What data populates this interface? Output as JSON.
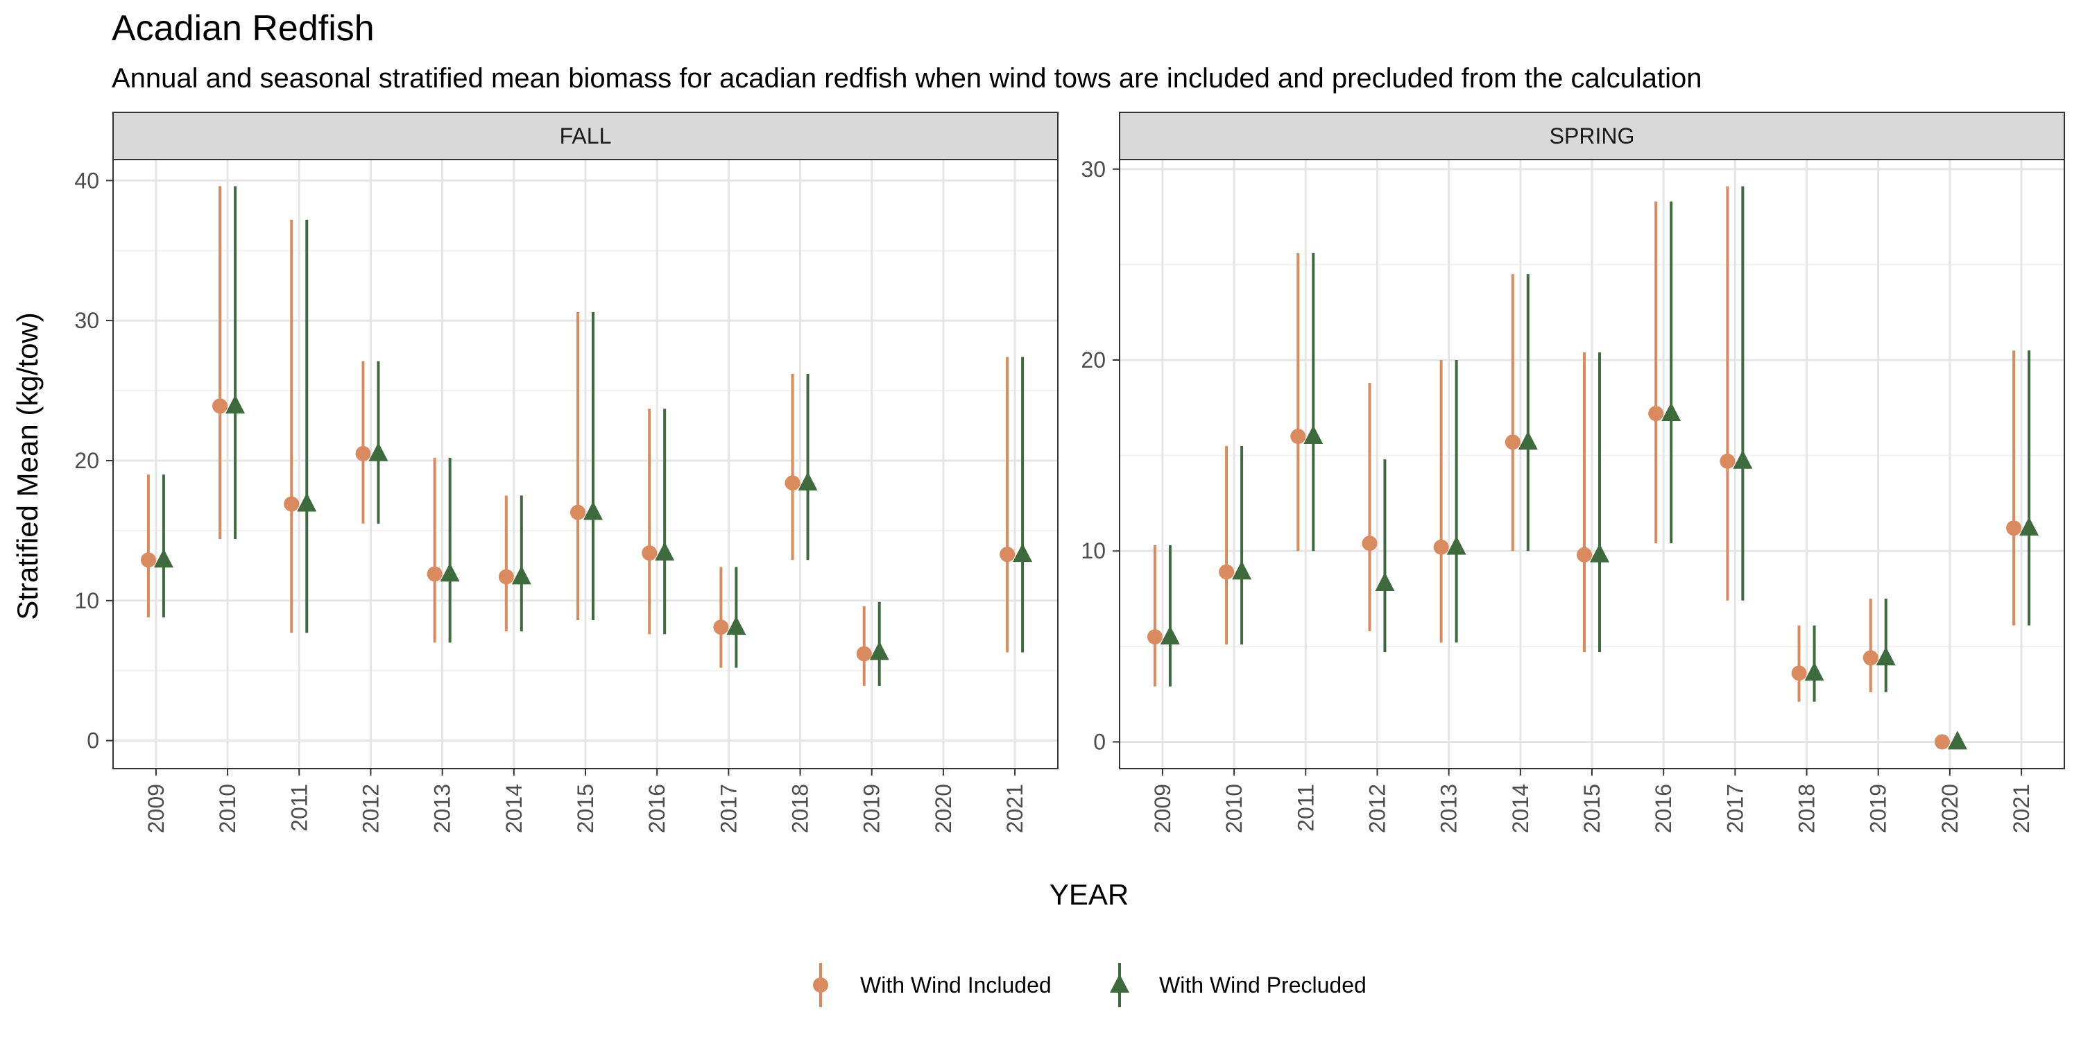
{
  "title": "Acadian Redfish",
  "subtitle": "Annual and seasonal stratified mean biomass for acadian redfish when wind tows are included and precluded from the calculation",
  "chart_data": {
    "type": "errorbar",
    "xlabel": "YEAR",
    "ylabel": "Stratified Mean (kg/tow)",
    "categories": [
      "2009",
      "2010",
      "2011",
      "2012",
      "2013",
      "2014",
      "2015",
      "2016",
      "2017",
      "2018",
      "2019",
      "2020",
      "2021"
    ],
    "legend": {
      "position": "bottom",
      "entries": [
        {
          "name": "With Wind Included",
          "color": "#D98B5F",
          "marker": "circle"
        },
        {
          "name": "With Wind Precluded",
          "color": "#3E6B3E",
          "marker": "triangle"
        }
      ]
    },
    "panels": [
      {
        "label": "FALL",
        "ylim": [
          -2,
          41.5
        ],
        "yticks": [
          0,
          10,
          20,
          30,
          40
        ],
        "series": [
          {
            "name": "With Wind Included",
            "points": [
              {
                "x": "2009",
                "y": 12.9,
                "lo": 8.8,
                "hi": 19.0
              },
              {
                "x": "2010",
                "y": 23.9,
                "lo": 14.4,
                "hi": 39.6
              },
              {
                "x": "2011",
                "y": 16.9,
                "lo": 7.7,
                "hi": 37.2
              },
              {
                "x": "2012",
                "y": 20.5,
                "lo": 15.5,
                "hi": 27.1
              },
              {
                "x": "2013",
                "y": 11.9,
                "lo": 7.0,
                "hi": 20.2
              },
              {
                "x": "2014",
                "y": 11.7,
                "lo": 7.8,
                "hi": 17.5
              },
              {
                "x": "2015",
                "y": 16.3,
                "lo": 8.6,
                "hi": 30.6
              },
              {
                "x": "2016",
                "y": 13.4,
                "lo": 7.6,
                "hi": 23.7
              },
              {
                "x": "2017",
                "y": 8.1,
                "lo": 5.2,
                "hi": 12.4
              },
              {
                "x": "2018",
                "y": 18.4,
                "lo": 12.9,
                "hi": 26.2
              },
              {
                "x": "2019",
                "y": 6.2,
                "lo": 3.9,
                "hi": 9.6
              },
              {
                "x": "2021",
                "y": 13.3,
                "lo": 6.3,
                "hi": 27.4
              }
            ]
          },
          {
            "name": "With Wind Precluded",
            "points": [
              {
                "x": "2009",
                "y": 12.9,
                "lo": 8.8,
                "hi": 19.0
              },
              {
                "x": "2010",
                "y": 23.9,
                "lo": 14.4,
                "hi": 39.6
              },
              {
                "x": "2011",
                "y": 16.9,
                "lo": 7.7,
                "hi": 37.2
              },
              {
                "x": "2012",
                "y": 20.5,
                "lo": 15.5,
                "hi": 27.1
              },
              {
                "x": "2013",
                "y": 11.9,
                "lo": 7.0,
                "hi": 20.2
              },
              {
                "x": "2014",
                "y": 11.7,
                "lo": 7.8,
                "hi": 17.5
              },
              {
                "x": "2015",
                "y": 16.3,
                "lo": 8.6,
                "hi": 30.6
              },
              {
                "x": "2016",
                "y": 13.4,
                "lo": 7.6,
                "hi": 23.7
              },
              {
                "x": "2017",
                "y": 8.1,
                "lo": 5.2,
                "hi": 12.4
              },
              {
                "x": "2018",
                "y": 18.4,
                "lo": 12.9,
                "hi": 26.2
              },
              {
                "x": "2019",
                "y": 6.3,
                "lo": 3.9,
                "hi": 9.9
              },
              {
                "x": "2021",
                "y": 13.3,
                "lo": 6.3,
                "hi": 27.4
              }
            ]
          }
        ]
      },
      {
        "label": "SPRING",
        "ylim": [
          -1.4,
          30.5
        ],
        "yticks": [
          0,
          10,
          20,
          30
        ],
        "series": [
          {
            "name": "With Wind Included",
            "points": [
              {
                "x": "2009",
                "y": 5.5,
                "lo": 2.9,
                "hi": 10.3
              },
              {
                "x": "2010",
                "y": 8.9,
                "lo": 5.1,
                "hi": 15.5
              },
              {
                "x": "2011",
                "y": 16.0,
                "lo": 10.0,
                "hi": 25.6
              },
              {
                "x": "2012",
                "y": 10.4,
                "lo": 5.8,
                "hi": 18.8
              },
              {
                "x": "2013",
                "y": 10.2,
                "lo": 5.2,
                "hi": 20.0
              },
              {
                "x": "2014",
                "y": 15.7,
                "lo": 10.0,
                "hi": 24.5
              },
              {
                "x": "2015",
                "y": 9.8,
                "lo": 4.7,
                "hi": 20.4
              },
              {
                "x": "2016",
                "y": 17.2,
                "lo": 10.4,
                "hi": 28.3
              },
              {
                "x": "2017",
                "y": 14.7,
                "lo": 7.4,
                "hi": 29.1
              },
              {
                "x": "2018",
                "y": 3.6,
                "lo": 2.1,
                "hi": 6.1
              },
              {
                "x": "2019",
                "y": 4.4,
                "lo": 2.6,
                "hi": 7.5
              },
              {
                "x": "2020",
                "y": 0.0,
                "lo": 0.0,
                "hi": 0.0
              },
              {
                "x": "2021",
                "y": 11.2,
                "lo": 6.1,
                "hi": 20.5
              }
            ]
          },
          {
            "name": "With Wind Precluded",
            "points": [
              {
                "x": "2009",
                "y": 5.5,
                "lo": 2.9,
                "hi": 10.3
              },
              {
                "x": "2010",
                "y": 8.9,
                "lo": 5.1,
                "hi": 15.5
              },
              {
                "x": "2011",
                "y": 16.0,
                "lo": 10.0,
                "hi": 25.6
              },
              {
                "x": "2012",
                "y": 8.3,
                "lo": 4.7,
                "hi": 14.8
              },
              {
                "x": "2013",
                "y": 10.2,
                "lo": 5.2,
                "hi": 20.0
              },
              {
                "x": "2014",
                "y": 15.7,
                "lo": 10.0,
                "hi": 24.5
              },
              {
                "x": "2015",
                "y": 9.8,
                "lo": 4.7,
                "hi": 20.4
              },
              {
                "x": "2016",
                "y": 17.2,
                "lo": 10.4,
                "hi": 28.3
              },
              {
                "x": "2017",
                "y": 14.7,
                "lo": 7.4,
                "hi": 29.1
              },
              {
                "x": "2018",
                "y": 3.6,
                "lo": 2.1,
                "hi": 6.1
              },
              {
                "x": "2019",
                "y": 4.4,
                "lo": 2.6,
                "hi": 7.5
              },
              {
                "x": "2020",
                "y": 0.0,
                "lo": 0.0,
                "hi": 0.0
              },
              {
                "x": "2021",
                "y": 11.2,
                "lo": 6.1,
                "hi": 20.5
              }
            ]
          }
        ]
      }
    ]
  }
}
